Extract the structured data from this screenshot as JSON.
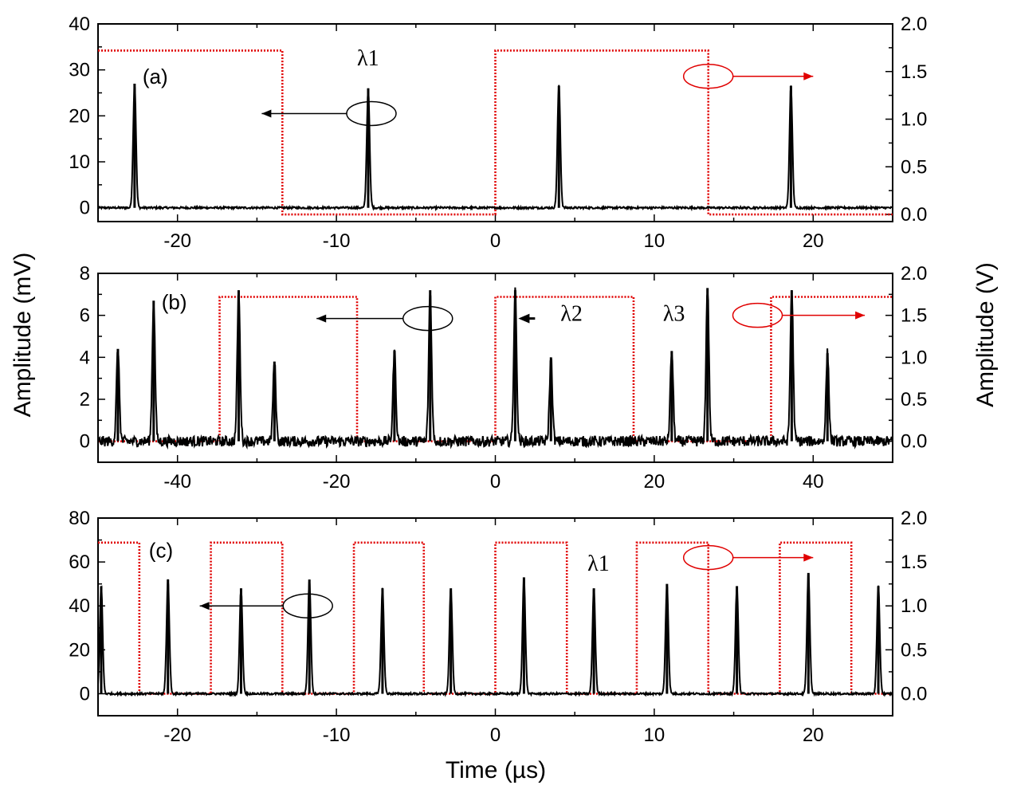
{
  "figure": {
    "left_axis_label": "Amplitude (mV)",
    "right_axis_label": "Amplitude (V)",
    "x_axis_label": "Time (µs)"
  },
  "colors": {
    "pulse": "#000000",
    "gate": "#e00000",
    "frame": "#000000"
  },
  "chart_data": [
    {
      "type": "line",
      "panel": "(a)",
      "title": "",
      "xlabel": "",
      "ylabel": "Amplitude (mV)",
      "y2label": "Amplitude (V)",
      "xlim": [
        -25,
        25
      ],
      "ylim": [
        -3,
        40
      ],
      "y2lim": [
        -0.075,
        2.0
      ],
      "x_ticks": [
        -20,
        -10,
        0,
        10,
        20
      ],
      "x_tick_labels": [
        "-20",
        "-10",
        "0",
        "10",
        "20"
      ],
      "y_ticks": [
        0,
        10,
        20,
        30,
        40
      ],
      "y_tick_labels": [
        "0",
        "10",
        "20",
        "30",
        "40"
      ],
      "y2_ticks": [
        0.0,
        0.5,
        1.0,
        1.5,
        2.0
      ],
      "y2_tick_labels": [
        "0.0",
        "0.5",
        "1.0",
        "1.5",
        "2.0"
      ],
      "series": [
        {
          "name": "optical pulses",
          "axis": "left",
          "style": "solid",
          "baseline": 0,
          "peaks": [
            {
              "x": -22.7,
              "height": 27
            },
            {
              "x": -8.0,
              "height": 26
            },
            {
              "x": 4.0,
              "height": 26.5
            },
            {
              "x": 18.6,
              "height": 26.5
            }
          ]
        },
        {
          "name": "gate signal",
          "axis": "right",
          "style": "dotted",
          "low": 0.0,
          "high": 1.72,
          "high_intervals": [
            [
              -25,
              -13.4
            ],
            [
              0,
              13.4
            ]
          ]
        }
      ],
      "annotations": [
        {
          "text": "λ1",
          "x": -8.7,
          "y": 31
        },
        {
          "text": "(a)",
          "x": -22.2,
          "y": 27
        }
      ],
      "arrows": [
        {
          "direction": "left",
          "color": "black",
          "ellipse_x": -7.8,
          "ellipse_y": 20.5,
          "tip_x": -14.7
        },
        {
          "direction": "right",
          "color": "red",
          "ellipse_x": 13.4,
          "ellipse_y": 1.45,
          "tip_x": 20.0
        }
      ]
    },
    {
      "type": "line",
      "panel": "(b)",
      "title": "",
      "xlabel": "",
      "ylabel": "Amplitude (mV)",
      "y2label": "Amplitude (V)",
      "xlim": [
        -50,
        50
      ],
      "ylim": [
        -1,
        8
      ],
      "y2lim": [
        -0.25,
        2.0
      ],
      "x_ticks": [
        -40,
        -20,
        0,
        20,
        40
      ],
      "x_tick_labels": [
        "-40",
        "-20",
        "0",
        "20",
        "40"
      ],
      "y_ticks": [
        0,
        2,
        4,
        6,
        8
      ],
      "y_tick_labels": [
        "0",
        "2",
        "4",
        "6",
        "8"
      ],
      "y2_ticks": [
        0.0,
        0.5,
        1.0,
        1.5,
        2.0
      ],
      "y2_tick_labels": [
        "0.0",
        "0.5",
        "1.0",
        "1.5",
        "2.0"
      ],
      "series": [
        {
          "name": "optical pulses",
          "axis": "left",
          "style": "solid",
          "baseline": 0,
          "peaks": [
            {
              "x": -47.5,
              "height": 4.4
            },
            {
              "x": -43.0,
              "height": 6.7
            },
            {
              "x": -32.3,
              "height": 7.2
            },
            {
              "x": -27.8,
              "height": 3.8
            },
            {
              "x": -12.7,
              "height": 4.3
            },
            {
              "x": -8.2,
              "height": 7.2
            },
            {
              "x": 2.5,
              "height": 7.2
            },
            {
              "x": 7.0,
              "height": 4.0
            },
            {
              "x": 22.2,
              "height": 4.3
            },
            {
              "x": 26.7,
              "height": 7.3
            },
            {
              "x": 37.3,
              "height": 7.2
            },
            {
              "x": 41.8,
              "height": 4.2
            }
          ]
        },
        {
          "name": "gate signal",
          "axis": "right",
          "style": "dotted",
          "low": 0.0,
          "high": 1.72,
          "high_intervals": [
            [
              -34.7,
              -17.4
            ],
            [
              0,
              17.4
            ],
            [
              34.7,
              50
            ]
          ]
        }
      ],
      "annotations": [
        {
          "text": "(b)",
          "x": -42.0,
          "y": 6.3
        },
        {
          "text": "λ2",
          "x": 8.2,
          "y": 5.75
        },
        {
          "text": "λ3",
          "x": 21.1,
          "y": 5.75
        }
      ],
      "arrows": [
        {
          "direction": "left",
          "color": "black",
          "ellipse_x": -8.5,
          "ellipse_y": 5.85,
          "tip_x": -22.5
        },
        {
          "direction": "left",
          "color": "black",
          "ellipse_x": null,
          "ellipse_y": 5.85,
          "from_x": 5.0,
          "tip_x": 3.3
        },
        {
          "direction": "right",
          "color": "red",
          "ellipse_x": 33.0,
          "ellipse_y": 1.5,
          "tip_x": 46.5
        }
      ]
    },
    {
      "type": "line",
      "panel": "(c)",
      "title": "",
      "xlabel": "Time (µs)",
      "ylabel": "Amplitude (mV)",
      "y2label": "Amplitude (V)",
      "xlim": [
        -25,
        25
      ],
      "ylim": [
        -10,
        80
      ],
      "y2lim": [
        -0.25,
        2.0
      ],
      "x_ticks": [
        -20,
        -10,
        0,
        10,
        20
      ],
      "x_tick_labels": [
        "-20",
        "-10",
        "0",
        "10",
        "20"
      ],
      "y_ticks": [
        0,
        20,
        40,
        60,
        80
      ],
      "y_tick_labels": [
        "0",
        "20",
        "40",
        "60",
        "80"
      ],
      "y2_ticks": [
        0.0,
        0.5,
        1.0,
        1.5,
        2.0
      ],
      "y2_tick_labels": [
        "0.0",
        "0.5",
        "1.0",
        "1.5",
        "2.0"
      ],
      "series": [
        {
          "name": "optical pulses",
          "axis": "left",
          "style": "solid",
          "baseline": 0,
          "peaks": [
            {
              "x": -24.8,
              "height": 49
            },
            {
              "x": -20.6,
              "height": 52
            },
            {
              "x": -16.0,
              "height": 48
            },
            {
              "x": -11.7,
              "height": 52
            },
            {
              "x": -7.1,
              "height": 48
            },
            {
              "x": -2.8,
              "height": 48
            },
            {
              "x": 1.8,
              "height": 53
            },
            {
              "x": 6.2,
              "height": 48
            },
            {
              "x": 10.8,
              "height": 50
            },
            {
              "x": 15.2,
              "height": 49
            },
            {
              "x": 19.7,
              "height": 55
            },
            {
              "x": 24.1,
              "height": 49
            }
          ]
        },
        {
          "name": "gate signal",
          "axis": "right",
          "style": "dotted",
          "low": 0.0,
          "high": 1.72,
          "high_intervals": [
            [
              -25,
              -22.4
            ],
            [
              -17.9,
              -13.4
            ],
            [
              -8.9,
              -4.5
            ],
            [
              0,
              4.5
            ],
            [
              8.9,
              13.4
            ],
            [
              17.9,
              22.4
            ]
          ]
        }
      ],
      "annotations": [
        {
          "text": "(c)",
          "x": -21.8,
          "y": 62
        },
        {
          "text": "λ1",
          "x": 5.8,
          "y": 56
        }
      ],
      "arrows": [
        {
          "direction": "left",
          "color": "black",
          "ellipse_x": -11.8,
          "ellipse_y": 40,
          "tip_x": -18.6
        },
        {
          "direction": "right",
          "color": "red",
          "ellipse_x": 13.4,
          "ellipse_y": 1.55,
          "tip_x": 20.0
        }
      ]
    }
  ]
}
